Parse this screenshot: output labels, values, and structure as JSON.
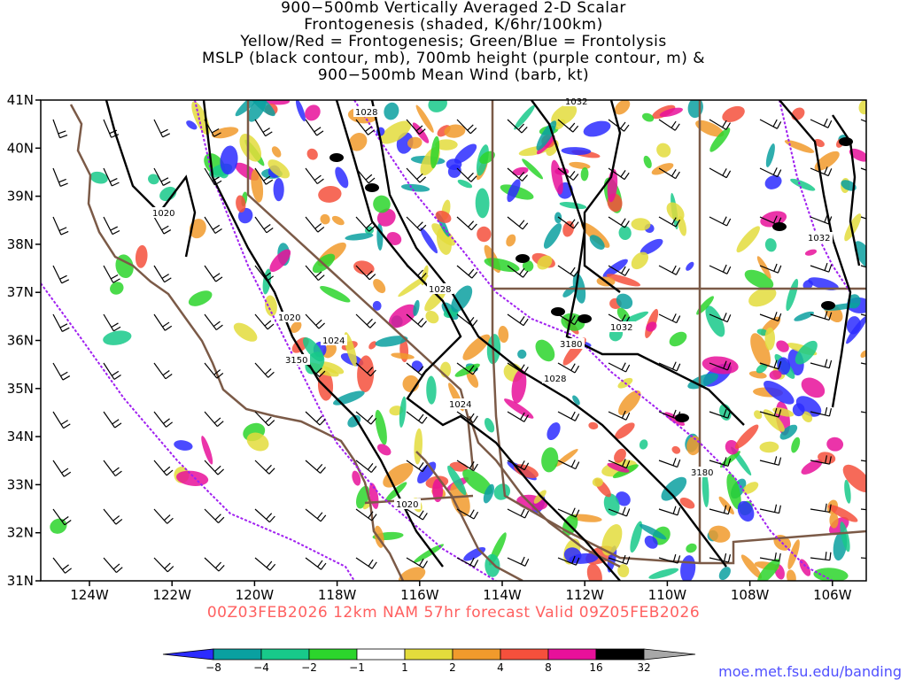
{
  "title": {
    "lines": [
      "900−500mb Vertically Averaged 2-D Scalar",
      "Frontogenesis (shaded, K/6hr/100km)",
      "Yellow/Red = Frontogenesis;  Green/Blue = Frontolysis",
      "MSLP (black contour, mb), 700mb height (purple contour, m) &",
      "900−500mb Mean Wind (barb, kt)"
    ]
  },
  "valid_line": "00Z03FEB2026 12km NAM 57hr forecast Valid 09Z05FEB2026",
  "credit": "moe.met.fsu.edu/banding",
  "axes": {
    "lat_labels": [
      "41N",
      "40N",
      "39N",
      "38N",
      "37N",
      "36N",
      "35N",
      "34N",
      "33N",
      "32N",
      "31N"
    ],
    "lon_labels": [
      "124W",
      "122W",
      "120W",
      "118W",
      "116W",
      "114W",
      "112W",
      "110W",
      "108W",
      "106W"
    ]
  },
  "contour_labels": {
    "mslp": [
      "1028",
      "1032",
      "1020",
      "1028",
      "1020",
      "1024",
      "1032",
      "1028",
      "1024",
      "1032",
      "1020"
    ],
    "height": [
      "3150",
      "3180",
      "3180"
    ]
  },
  "colorbar": {
    "ticks": [
      "−8",
      "−4",
      "−2",
      "−1",
      "1",
      "2",
      "4",
      "8",
      "16",
      "32"
    ],
    "colors": [
      "#2b2bff",
      "#0aa0a0",
      "#18c98a",
      "#2cd52c",
      "#ffffff",
      "#e3dc3c",
      "#f19a2c",
      "#f5503c",
      "#e8109a",
      "#000000",
      "#a8a8a8"
    ]
  },
  "colors": {
    "mslp": "#000000",
    "height": "#a020f0",
    "borders": "#7b5a47",
    "valid": "#ff6060",
    "credit": "#5050ff"
  }
}
